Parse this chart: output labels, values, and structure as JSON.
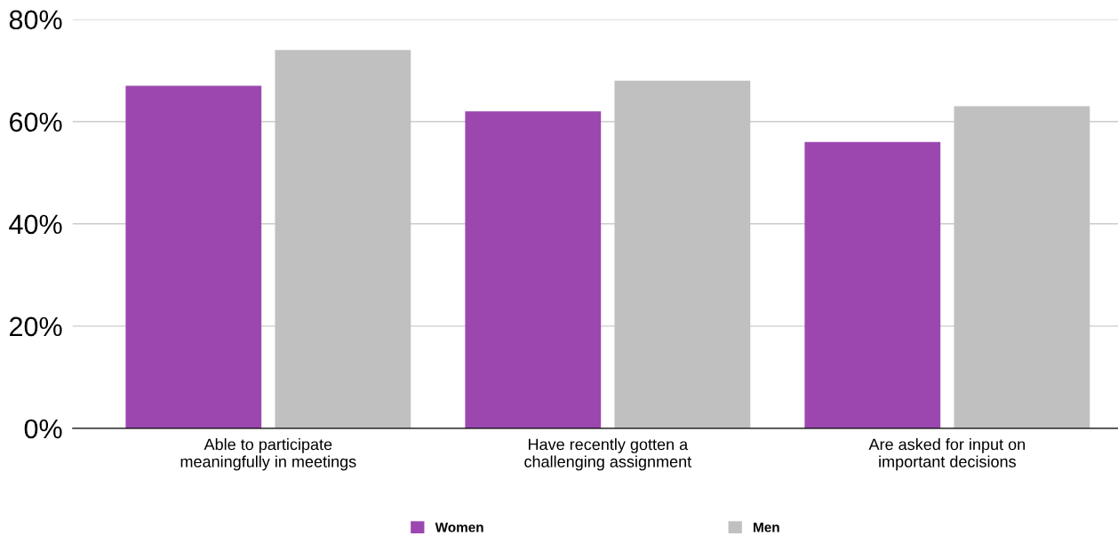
{
  "chart_data": {
    "type": "bar",
    "categories": [
      "Able to participate\nmeaningfully in meetings",
      "Have recently gotten a\nchallenging assignment",
      "Are asked for input on\nimportant decisions"
    ],
    "series": [
      {
        "name": "Women",
        "color": "#9c47b0",
        "values": [
          67,
          62,
          56
        ]
      },
      {
        "name": "Men",
        "color": "#c0c0c0",
        "values": [
          74,
          68,
          63
        ]
      }
    ],
    "ylim": [
      0,
      80
    ],
    "yticks": [
      {
        "value": 0,
        "label": "0%"
      },
      {
        "value": 20,
        "label": "20%"
      },
      {
        "value": 40,
        "label": "40%"
      },
      {
        "value": 60,
        "label": "60%"
      },
      {
        "value": 80,
        "label": "80%"
      }
    ],
    "grid": "y",
    "legend": "bottom"
  }
}
